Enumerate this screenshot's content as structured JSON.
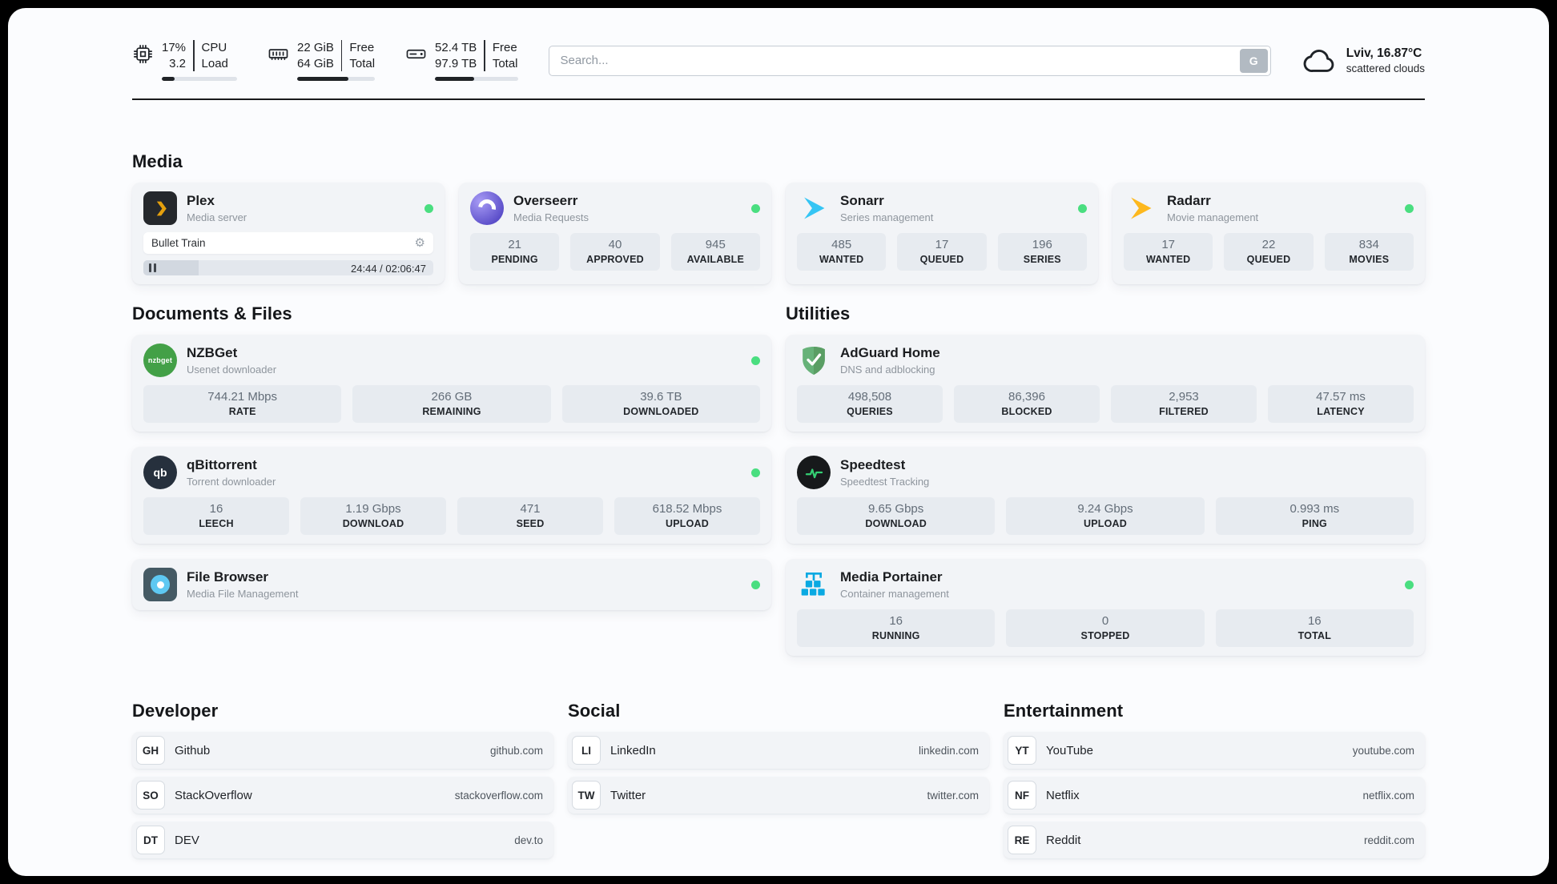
{
  "header": {
    "cpu": {
      "v1": "17%",
      "v2": "3.2",
      "l1": "CPU",
      "l2": "Load",
      "progress": 17
    },
    "ram": {
      "v1": "22 GiB",
      "v2": "64 GiB",
      "l1": "Free",
      "l2": "Total",
      "progress": 66
    },
    "disk": {
      "v1": "52.4 TB",
      "v2": "97.9 TB",
      "l1": "Free",
      "l2": "Total",
      "progress": 47
    },
    "search": {
      "placeholder": "Search...",
      "button_label": "G"
    },
    "weather": {
      "location": "Lviv, 16.87°C",
      "condition": "scattered clouds"
    }
  },
  "media": {
    "title": "Media",
    "plex": {
      "name": "Plex",
      "subtitle": "Media server",
      "now_playing": "Bullet Train",
      "time": "24:44 / 02:06:47",
      "progress": 19
    },
    "overseerr": {
      "name": "Overseerr",
      "subtitle": "Media Requests",
      "stats": [
        {
          "value": "21",
          "label": "PENDING"
        },
        {
          "value": "40",
          "label": "APPROVED"
        },
        {
          "value": "945",
          "label": "AVAILABLE"
        }
      ]
    },
    "sonarr": {
      "name": "Sonarr",
      "subtitle": "Series management",
      "stats": [
        {
          "value": "485",
          "label": "WANTED"
        },
        {
          "value": "17",
          "label": "QUEUED"
        },
        {
          "value": "196",
          "label": "SERIES"
        }
      ]
    },
    "radarr": {
      "name": "Radarr",
      "subtitle": "Movie management",
      "stats": [
        {
          "value": "17",
          "label": "WANTED"
        },
        {
          "value": "22",
          "label": "QUEUED"
        },
        {
          "value": "834",
          "label": "MOVIES"
        }
      ]
    }
  },
  "documents": {
    "title": "Documents & Files",
    "nzbget": {
      "name": "NZBGet",
      "subtitle": "Usenet downloader",
      "stats": [
        {
          "value": "744.21 Mbps",
          "label": "RATE"
        },
        {
          "value": "266 GB",
          "label": "REMAINING"
        },
        {
          "value": "39.6 TB",
          "label": "DOWNLOADED"
        }
      ]
    },
    "qbittorrent": {
      "name": "qBittorrent",
      "subtitle": "Torrent downloader",
      "stats": [
        {
          "value": "16",
          "label": "LEECH"
        },
        {
          "value": "1.19 Gbps",
          "label": "DOWNLOAD"
        },
        {
          "value": "471",
          "label": "SEED"
        },
        {
          "value": "618.52 Mbps",
          "label": "UPLOAD"
        }
      ]
    },
    "filebrowser": {
      "name": "File Browser",
      "subtitle": "Media File Management"
    }
  },
  "utilities": {
    "title": "Utilities",
    "adguard": {
      "name": "AdGuard Home",
      "subtitle": "DNS and adblocking",
      "stats": [
        {
          "value": "498,508",
          "label": "QUERIES"
        },
        {
          "value": "86,396",
          "label": "BLOCKED"
        },
        {
          "value": "2,953",
          "label": "FILTERED"
        },
        {
          "value": "47.57 ms",
          "label": "LATENCY"
        }
      ]
    },
    "speedtest": {
      "name": "Speedtest",
      "subtitle": "Speedtest Tracking",
      "stats": [
        {
          "value": "9.65 Gbps",
          "label": "DOWNLOAD"
        },
        {
          "value": "9.24 Gbps",
          "label": "UPLOAD"
        },
        {
          "value": "0.993 ms",
          "label": "PING"
        }
      ]
    },
    "portainer": {
      "name": "Media Portainer",
      "subtitle": "Container management",
      "stats": [
        {
          "value": "16",
          "label": "RUNNING"
        },
        {
          "value": "0",
          "label": "STOPPED"
        },
        {
          "value": "16",
          "label": "TOTAL"
        }
      ]
    }
  },
  "bookmarks": {
    "developer": {
      "title": "Developer",
      "items": [
        {
          "badge": "GH",
          "name": "Github",
          "url": "github.com"
        },
        {
          "badge": "SO",
          "name": "StackOverflow",
          "url": "stackoverflow.com"
        },
        {
          "badge": "DT",
          "name": "DEV",
          "url": "dev.to"
        }
      ]
    },
    "social": {
      "title": "Social",
      "items": [
        {
          "badge": "LI",
          "name": "LinkedIn",
          "url": "linkedin.com"
        },
        {
          "badge": "TW",
          "name": "Twitter",
          "url": "twitter.com"
        }
      ]
    },
    "entertainment": {
      "title": "Entertainment",
      "items": [
        {
          "badge": "YT",
          "name": "YouTube",
          "url": "youtube.com"
        },
        {
          "badge": "NF",
          "name": "Netflix",
          "url": "netflix.com"
        },
        {
          "badge": "RE",
          "name": "Reddit",
          "url": "reddit.com"
        }
      ]
    }
  },
  "icons": {
    "gear": "⚙",
    "nzbget_label": "nzbget",
    "qbittorrent_label": "qb"
  },
  "colors": {
    "status_online": "#4ade80",
    "plex": "#e5a00d",
    "sonarr": "#35c5f4",
    "radarr": "#fdb81e",
    "overseerr": "#5b4ec9",
    "nzbget": "#43a047",
    "adguard": "#67b279",
    "speedtest": "#34d073",
    "portainer": "#0aa9e2"
  }
}
